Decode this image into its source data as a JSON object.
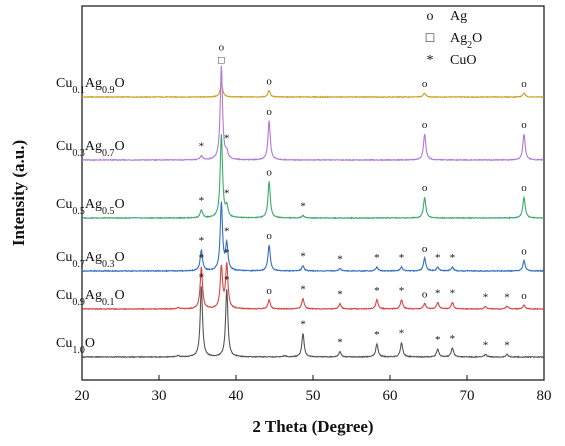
{
  "chart_data": {
    "type": "line",
    "xlabel": "2 Theta (Degree)",
    "ylabel": "Intensity (a.u.)",
    "xlim": [
      20,
      80
    ],
    "xticks": [
      "20",
      "30",
      "40",
      "50",
      "60",
      "70",
      "80"
    ],
    "y_ticks_shown": false,
    "grid": false,
    "legend_position": "top-right",
    "legend": [
      {
        "symbol": "o",
        "text": "Ag",
        "sub": ""
      },
      {
        "symbol": "□",
        "text": "Ag",
        "sub": "2",
        "tail": "O"
      },
      {
        "symbol": "*",
        "text": "CuO",
        "sub": ""
      }
    ],
    "series": [
      {
        "name": "Cu0.1Ag0.9O",
        "label_parts": [
          [
            "Cu",
            ""
          ],
          [
            "0.1",
            "sub"
          ],
          [
            "Ag",
            ""
          ],
          [
            "0.9",
            "sub"
          ],
          [
            "O",
            ""
          ]
        ],
        "color": "#c9a227",
        "offset": 5,
        "peaks": [
          [
            38.1,
            0.55
          ],
          [
            44.3,
            0.25
          ],
          [
            64.5,
            0.15
          ],
          [
            77.4,
            0.15
          ]
        ],
        "markers": [
          {
            "x": 38.1,
            "s": "o"
          },
          {
            "x": 38.1,
            "s": "□"
          },
          {
            "x": 44.3,
            "s": "o"
          },
          {
            "x": 64.5,
            "s": "o"
          },
          {
            "x": 77.4,
            "s": "o"
          }
        ]
      },
      {
        "name": "Cu0.3Ag0.7O",
        "label_parts": [
          [
            "Cu",
            ""
          ],
          [
            "0.3",
            "sub"
          ],
          [
            "Ag",
            ""
          ],
          [
            "0.7",
            "sub"
          ],
          [
            "O",
            ""
          ]
        ],
        "color": "#b07ad8",
        "offset": 4,
        "peaks": [
          [
            35.5,
            0.15
          ],
          [
            38.1,
            3.6
          ],
          [
            38.8,
            0.25
          ],
          [
            44.3,
            1.5
          ],
          [
            64.5,
            1.0
          ],
          [
            77.4,
            1.0
          ]
        ],
        "markers": [
          {
            "x": 35.5,
            "s": "*"
          },
          {
            "x": 38.8,
            "s": "*"
          },
          {
            "x": 44.3,
            "s": "o"
          },
          {
            "x": 64.5,
            "s": "o"
          },
          {
            "x": 77.4,
            "s": "o"
          }
        ]
      },
      {
        "name": "Cu0.5Ag0.5O",
        "label_parts": [
          [
            "Cu",
            ""
          ],
          [
            "0.5",
            "sub"
          ],
          [
            "Ag",
            ""
          ],
          [
            "0.5",
            "sub"
          ],
          [
            "O",
            ""
          ]
        ],
        "color": "#3daa6e",
        "offset": 3,
        "peaks": [
          [
            35.5,
            0.3
          ],
          [
            38.1,
            3.2
          ],
          [
            38.8,
            0.4
          ],
          [
            44.3,
            1.4
          ],
          [
            48.7,
            0.1
          ],
          [
            64.5,
            0.8
          ],
          [
            77.4,
            0.8
          ]
        ],
        "markers": [
          {
            "x": 35.5,
            "s": "*"
          },
          {
            "x": 38.8,
            "s": "*"
          },
          {
            "x": 44.3,
            "s": "o"
          },
          {
            "x": 48.7,
            "s": "*"
          },
          {
            "x": 64.5,
            "s": "o"
          },
          {
            "x": 77.4,
            "s": "o"
          }
        ]
      },
      {
        "name": "Cu0.7Ag0.3O",
        "label_parts": [
          [
            "Cu",
            ""
          ],
          [
            "0.7",
            "sub"
          ],
          [
            "Ag",
            ""
          ],
          [
            "0.3",
            "sub"
          ],
          [
            "O",
            ""
          ]
        ],
        "color": "#2f6fc6",
        "offset": 2,
        "peaks": [
          [
            35.5,
            0.8
          ],
          [
            38.1,
            2.6
          ],
          [
            38.8,
            1.0
          ],
          [
            44.3,
            1.0
          ],
          [
            48.7,
            0.2
          ],
          [
            53.5,
            0.1
          ],
          [
            58.3,
            0.15
          ],
          [
            61.5,
            0.15
          ],
          [
            64.5,
            0.5
          ],
          [
            66.2,
            0.15
          ],
          [
            68.1,
            0.15
          ],
          [
            77.4,
            0.4
          ]
        ],
        "markers": [
          {
            "x": 35.5,
            "s": "*"
          },
          {
            "x": 38.8,
            "s": "*"
          },
          {
            "x": 44.3,
            "s": "o"
          },
          {
            "x": 48.7,
            "s": "*"
          },
          {
            "x": 53.5,
            "s": "*"
          },
          {
            "x": 58.3,
            "s": "*"
          },
          {
            "x": 61.5,
            "s": "*"
          },
          {
            "x": 64.5,
            "s": "o"
          },
          {
            "x": 66.2,
            "s": "*"
          },
          {
            "x": 68.1,
            "s": "*"
          },
          {
            "x": 77.4,
            "s": "o"
          }
        ]
      },
      {
        "name": "Cu0.9Ag0.1O",
        "label_parts": [
          [
            "Cu",
            ""
          ],
          [
            "0.9",
            "sub"
          ],
          [
            "Ag",
            ""
          ],
          [
            "0.1",
            "sub"
          ],
          [
            "O",
            ""
          ]
        ],
        "color": "#d94545",
        "offset": 1,
        "peaks": [
          [
            32.5,
            0.05
          ],
          [
            35.5,
            1.6
          ],
          [
            38.1,
            1.6
          ],
          [
            38.8,
            1.7
          ],
          [
            44.3,
            0.35
          ],
          [
            48.7,
            0.4
          ],
          [
            53.5,
            0.2
          ],
          [
            58.3,
            0.35
          ],
          [
            61.5,
            0.35
          ],
          [
            64.5,
            0.2
          ],
          [
            66.2,
            0.25
          ],
          [
            68.1,
            0.25
          ],
          [
            72.4,
            0.1
          ],
          [
            75.2,
            0.1
          ],
          [
            77.4,
            0.15
          ]
        ],
        "markers": [
          {
            "x": 35.5,
            "s": "*"
          },
          {
            "x": 38.8,
            "s": "*"
          },
          {
            "x": 44.3,
            "s": "o"
          },
          {
            "x": 48.7,
            "s": "*"
          },
          {
            "x": 53.5,
            "s": "*"
          },
          {
            "x": 58.3,
            "s": "*"
          },
          {
            "x": 61.5,
            "s": "*"
          },
          {
            "x": 64.5,
            "s": "o"
          },
          {
            "x": 66.2,
            "s": "*"
          },
          {
            "x": 68.1,
            "s": "*"
          },
          {
            "x": 72.4,
            "s": "*"
          },
          {
            "x": 75.2,
            "s": "*"
          },
          {
            "x": 77.4,
            "s": "o"
          }
        ]
      },
      {
        "name": "Cu1.0O",
        "label_parts": [
          [
            "Cu",
            ""
          ],
          [
            "1.0",
            "sub"
          ],
          [
            "O",
            ""
          ]
        ],
        "color": "#555555",
        "offset": 0,
        "peaks": [
          [
            32.5,
            0.05
          ],
          [
            35.5,
            2.7
          ],
          [
            38.8,
            2.6
          ],
          [
            46.3,
            0.05
          ],
          [
            48.7,
            0.9
          ],
          [
            53.5,
            0.2
          ],
          [
            58.3,
            0.5
          ],
          [
            61.5,
            0.55
          ],
          [
            66.2,
            0.3
          ],
          [
            68.1,
            0.35
          ],
          [
            72.4,
            0.1
          ],
          [
            75.2,
            0.1
          ]
        ],
        "markers": [
          {
            "x": 35.5,
            "s": "*"
          },
          {
            "x": 38.8,
            "s": "*"
          },
          {
            "x": 48.7,
            "s": "*"
          },
          {
            "x": 53.5,
            "s": "*"
          },
          {
            "x": 58.3,
            "s": "*"
          },
          {
            "x": 61.5,
            "s": "*"
          },
          {
            "x": 66.2,
            "s": "*"
          },
          {
            "x": 68.1,
            "s": "*"
          },
          {
            "x": 72.4,
            "s": "*"
          },
          {
            "x": 75.2,
            "s": "*"
          }
        ]
      }
    ]
  }
}
